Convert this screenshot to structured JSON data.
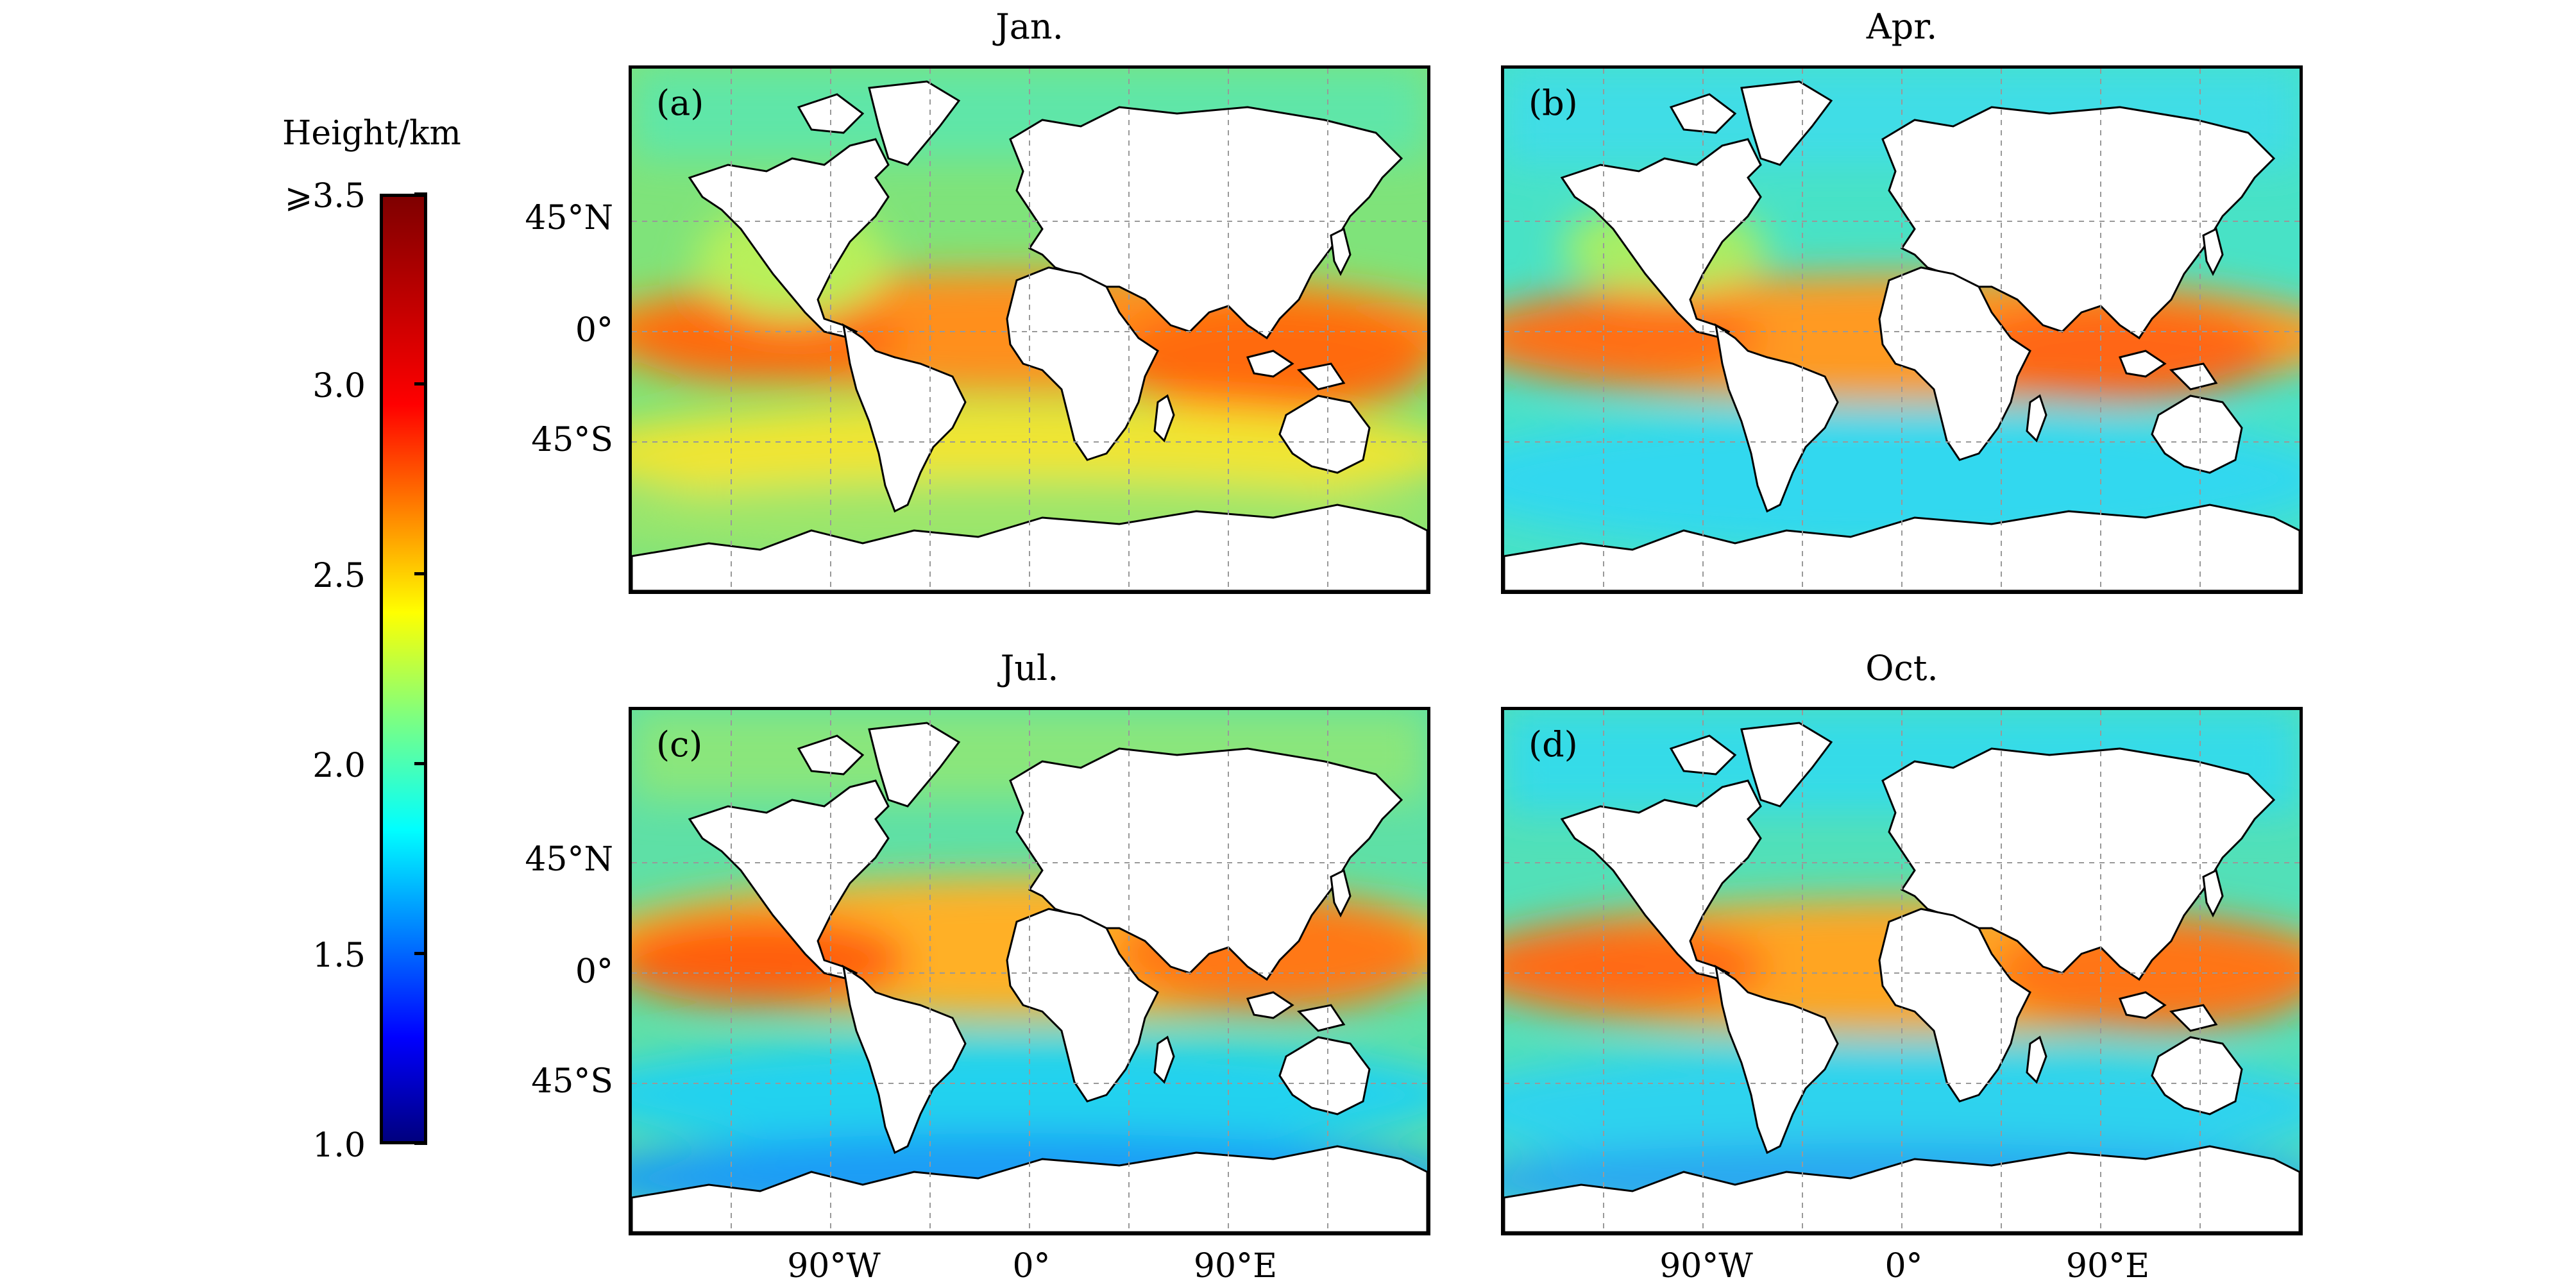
{
  "colorbar": {
    "title": "Height/km",
    "ticks": [
      "1.0",
      "1.5",
      "2.0",
      "2.5",
      "3.0",
      "⩾3.5"
    ],
    "range": [
      1.0,
      3.5
    ],
    "colors": [
      "#00007f",
      "#0000ff",
      "#007fff",
      "#00ffff",
      "#7fff7f",
      "#ffff00",
      "#ff7f00",
      "#ff0000",
      "#7f0000"
    ]
  },
  "panels": [
    {
      "title": "Jan.",
      "letter": "(a)"
    },
    {
      "title": "Apr.",
      "letter": "(b)"
    },
    {
      "title": "Jul.",
      "letter": "(c)"
    },
    {
      "title": "Oct.",
      "letter": "(d)"
    }
  ],
  "lat_labels": [
    "45°N",
    "0°",
    "45°S"
  ],
  "lon_labels": [
    "90°W",
    "0°",
    "90°E"
  ]
}
